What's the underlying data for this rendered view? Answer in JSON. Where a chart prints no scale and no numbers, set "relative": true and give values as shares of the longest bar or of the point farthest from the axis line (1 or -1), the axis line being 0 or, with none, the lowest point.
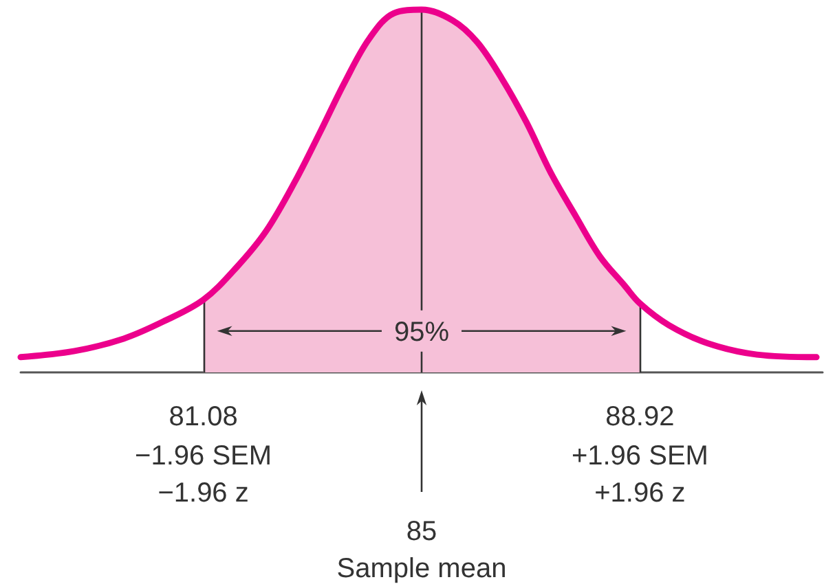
{
  "chart_data": {
    "type": "line",
    "relative": true,
    "marker": "none",
    "line_style": "solid",
    "grid": false,
    "series": [
      {
        "type": "area",
        "color": "#f6c0d8",
        "x": [
          81.08,
          81.68,
          82.21,
          82.74,
          83.17,
          83.62,
          84.06,
          84.5,
          85,
          85.56,
          86.0,
          86.44,
          86.88,
          87.32,
          87.77,
          88.2,
          88.64,
          88.92
        ],
        "values": [
          0.2,
          0.29,
          0.39,
          0.53,
          0.66,
          0.8,
          0.92,
          0.99,
          1,
          0.97,
          0.91,
          0.81,
          0.69,
          0.55,
          0.43,
          0.32,
          0.24,
          0.19
        ]
      },
      {
        "color": "#ec008c",
        "x": [
          77.8,
          78.77,
          79.65,
          80.36,
          81.08,
          81.68,
          82.21,
          82.74,
          83.17,
          83.62,
          84.06,
          84.5,
          85,
          85.56,
          86.0,
          86.44,
          86.88,
          87.32,
          87.77,
          88.2,
          88.64,
          88.92,
          89.44,
          90.14,
          91.02,
          92.09
        ],
        "values": [
          0.042,
          0.059,
          0.093,
          0.14,
          0.2,
          0.29,
          0.39,
          0.53,
          0.66,
          0.8,
          0.92,
          0.99,
          1,
          0.97,
          0.91,
          0.81,
          0.69,
          0.55,
          0.43,
          0.32,
          0.24,
          0.19,
          0.13,
          0.08,
          0.049,
          0.042
        ]
      }
    ],
    "xlim": [
      77.8,
      92.2
    ],
    "xticks": [
      81.08,
      88.92
    ],
    "ref_lines": [
      {
        "axis": "x",
        "value": 81.08
      },
      {
        "axis": "x",
        "value": 85,
        "label": "85\nSample mean"
      },
      {
        "axis": "x",
        "value": 88.92
      }
    ],
    "annotations": [
      "95%",
      {
        "text": "−1.96 SEM\n−1.96 z",
        "x": 81.08,
        "y": 0
      },
      {
        "text": "+1.96 SEM\n+1.96 z",
        "x": 88.92,
        "y": 0
      }
    ]
  }
}
